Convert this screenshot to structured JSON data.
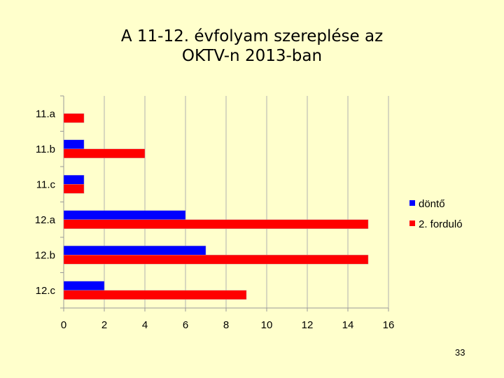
{
  "chart_data": {
    "type": "bar",
    "orientation": "horizontal",
    "title_lines": [
      "A 11-12. évfolyam szereplése az",
      "OKTV-n 2013-ban"
    ],
    "categories": [
      "11.a",
      "11.b",
      "11.c",
      "12.a",
      "12.b",
      "12.c"
    ],
    "series": [
      {
        "name": "döntő",
        "color": "#0000ff",
        "values": [
          0,
          1,
          1,
          6,
          7,
          2
        ]
      },
      {
        "name": "2. forduló",
        "color": "#ff0000",
        "values": [
          1,
          4,
          1,
          15,
          15,
          9
        ]
      }
    ],
    "xlim": [
      0,
      16
    ],
    "x_ticks": [
      0,
      2,
      4,
      6,
      8,
      10,
      12,
      14,
      16
    ],
    "grid": true,
    "legend_position": "right"
  },
  "page_number": "33"
}
